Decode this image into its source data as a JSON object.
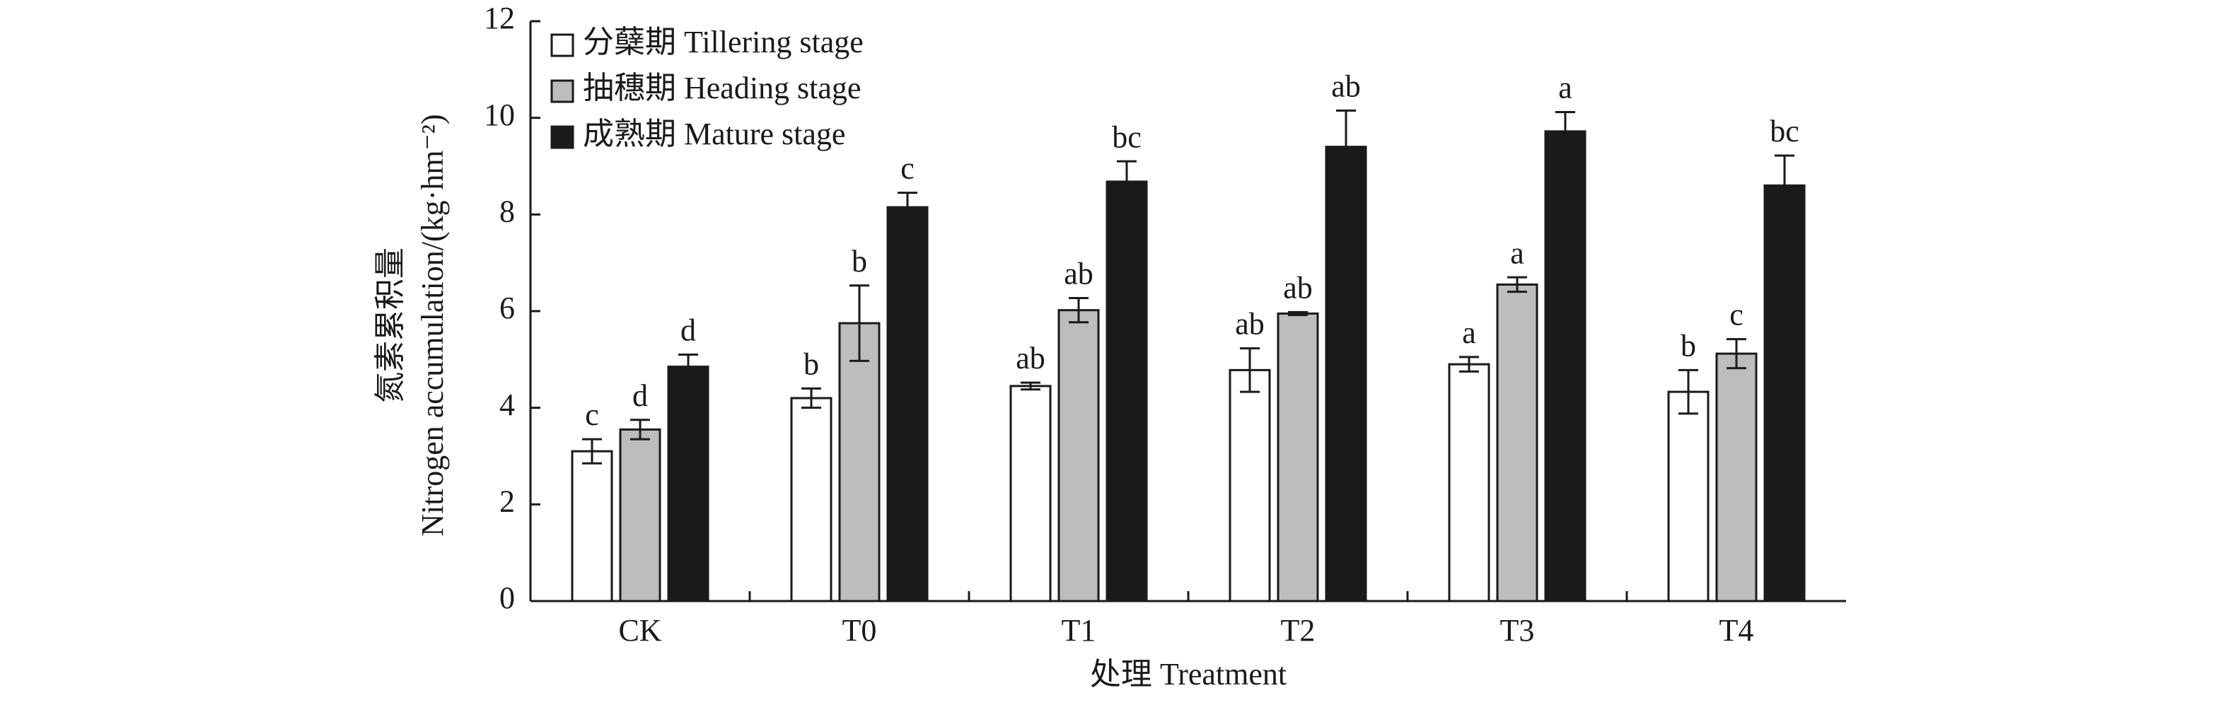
{
  "chart_data": {
    "type": "bar",
    "ylabel": [
      "氮素累积量",
      "Nitrogen accumulation/(kg·hm⁻²)"
    ],
    "xlabel": "处理 Treatment",
    "categories": [
      "CK",
      "T0",
      "T1",
      "T2",
      "T3",
      "T4"
    ],
    "series": [
      {
        "name": "分蘖期 Tillering stage",
        "color": "#ffffff",
        "values": [
          3.1,
          4.2,
          4.45,
          4.78,
          4.9,
          4.33
        ],
        "errors": [
          0.25,
          0.2,
          0.07,
          0.45,
          0.15,
          0.45
        ],
        "letters": [
          "c",
          "b",
          "ab",
          "ab",
          "a",
          "b"
        ]
      },
      {
        "name": "抽穗期 Heading stage",
        "color": "#bdbdbd",
        "values": [
          3.55,
          5.75,
          6.02,
          5.95,
          6.55,
          5.12
        ],
        "errors": [
          0.2,
          0.78,
          0.25,
          0.03,
          0.15,
          0.3
        ],
        "letters": [
          "d",
          "b",
          "ab",
          "ab",
          "a",
          "c"
        ]
      },
      {
        "name": "成熟期 Mature stage",
        "color": "#1a1a1a",
        "values": [
          4.85,
          8.15,
          8.68,
          9.4,
          9.72,
          8.6
        ],
        "errors": [
          0.25,
          0.3,
          0.42,
          0.75,
          0.4,
          0.62
        ],
        "letters": [
          "d",
          "c",
          "bc",
          "ab",
          "a",
          "bc"
        ]
      }
    ],
    "ylim": [
      0,
      12
    ],
    "yticks": [
      0,
      2,
      4,
      6,
      8,
      10,
      12
    ],
    "grid": false,
    "legend": "upper left"
  }
}
